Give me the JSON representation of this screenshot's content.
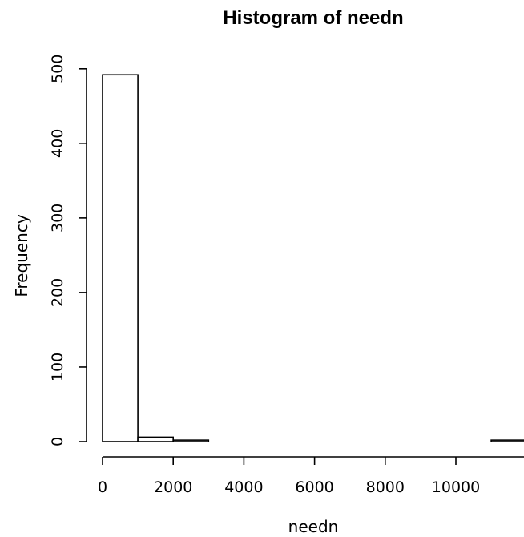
{
  "chart_data": {
    "type": "bar",
    "title": "Histogram of needn",
    "xlabel": "needn",
    "ylabel": "Frequency",
    "bin_edges": [
      0,
      1000,
      2000,
      3000,
      4000,
      5000,
      6000,
      7000,
      8000,
      9000,
      10000,
      11000,
      12000
    ],
    "values": [
      492,
      6,
      2,
      0,
      0,
      0,
      0,
      0,
      0,
      0,
      0,
      2
    ],
    "x_ticks": [
      0,
      2000,
      4000,
      6000,
      8000,
      10000
    ],
    "y_ticks": [
      0,
      100,
      200,
      300,
      400,
      500
    ],
    "ylim": [
      0,
      500
    ],
    "grid": false
  }
}
